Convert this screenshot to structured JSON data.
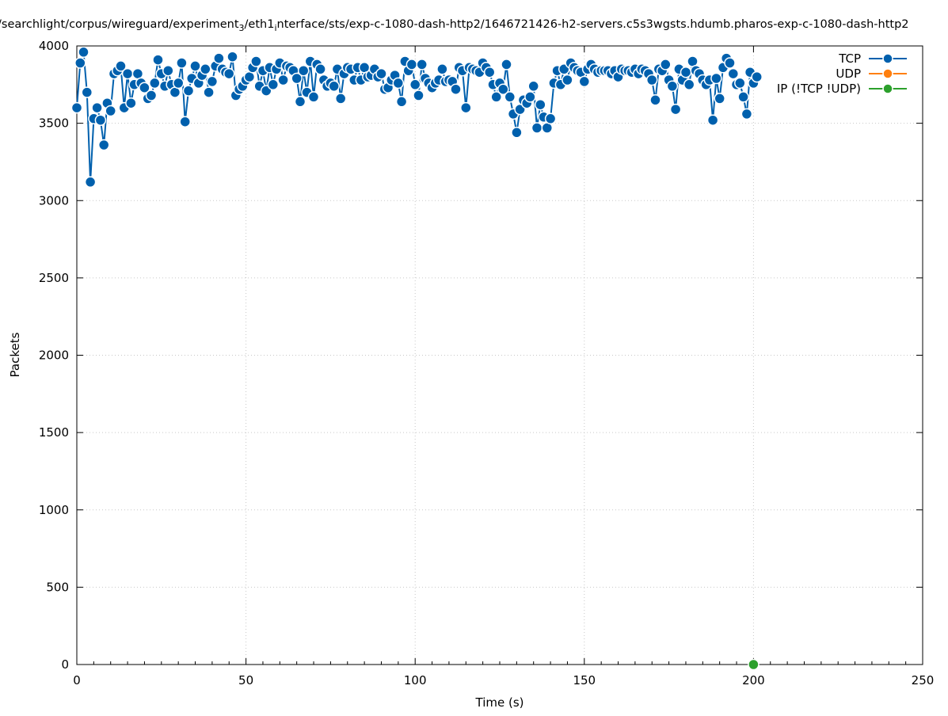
{
  "chart_data": {
    "type": "line",
    "title_prefix": "/searchlight/corpus/wireguard/experiment",
    "title_sub1": "3",
    "title_mid": "/eth1",
    "title_sub2": "i",
    "title_suffix": "nterface/sts/exp-c-1080-dash-http2/1646721426-h2-servers.c5s3wgsts.hdumb.pharos-exp-c-1080-dash-http2",
    "xlabel": "Time (s)",
    "ylabel": "Packets",
    "xlim": [
      0,
      250
    ],
    "ylim": [
      0,
      4000
    ],
    "x_ticks": [
      0,
      50,
      100,
      150,
      200,
      250
    ],
    "y_ticks": [
      0,
      500,
      1000,
      1500,
      2000,
      2500,
      3000,
      3500,
      4000
    ],
    "grid": true,
    "legend_position": "top-right",
    "series": [
      {
        "name": "TCP",
        "color": "#0060ad",
        "x": [
          0,
          1,
          2,
          3,
          4,
          5,
          6,
          7,
          8,
          9,
          10,
          11,
          12,
          13,
          14,
          15,
          16,
          17,
          18,
          19,
          20,
          21,
          22,
          23,
          24,
          25,
          26,
          27,
          28,
          29,
          30,
          31,
          32,
          33,
          34,
          35,
          36,
          37,
          38,
          39,
          40,
          41,
          42,
          43,
          44,
          45,
          46,
          47,
          48,
          49,
          50,
          51,
          52,
          53,
          54,
          55,
          56,
          57,
          58,
          59,
          60,
          61,
          62,
          63,
          64,
          65,
          66,
          67,
          68,
          69,
          70,
          71,
          72,
          73,
          74,
          75,
          76,
          77,
          78,
          79,
          80,
          81,
          82,
          83,
          84,
          85,
          86,
          87,
          88,
          89,
          90,
          91,
          92,
          93,
          94,
          95,
          96,
          97,
          98,
          99,
          100,
          101,
          102,
          103,
          104,
          105,
          106,
          107,
          108,
          109,
          110,
          111,
          112,
          113,
          114,
          115,
          116,
          117,
          118,
          119,
          120,
          121,
          122,
          123,
          124,
          125,
          126,
          127,
          128,
          129,
          130,
          131,
          132,
          133,
          134,
          135,
          136,
          137,
          138,
          139,
          140,
          141,
          142,
          143,
          144,
          145,
          146,
          147,
          148,
          149,
          150,
          151,
          152,
          153,
          154,
          155,
          156,
          157,
          158,
          159,
          160,
          161,
          162,
          163,
          164,
          165,
          166,
          167,
          168,
          169,
          170,
          171,
          172,
          173,
          174,
          175,
          176,
          177,
          178,
          179,
          180,
          181,
          182,
          183,
          184,
          185,
          186,
          187,
          188,
          189,
          190,
          191,
          192,
          193,
          194,
          195,
          196,
          197,
          198,
          199,
          200,
          201
        ],
        "y": [
          3600,
          3890,
          3960,
          3700,
          3120,
          3530,
          3600,
          3520,
          3360,
          3630,
          3580,
          3820,
          3840,
          3870,
          3600,
          3820,
          3630,
          3750,
          3820,
          3760,
          3730,
          3660,
          3680,
          3760,
          3910,
          3820,
          3740,
          3840,
          3750,
          3700,
          3760,
          3890,
          3510,
          3710,
          3790,
          3870,
          3760,
          3810,
          3850,
          3700,
          3770,
          3870,
          3920,
          3850,
          3830,
          3820,
          3930,
          3680,
          3720,
          3740,
          3780,
          3800,
          3860,
          3900,
          3740,
          3840,
          3710,
          3860,
          3750,
          3850,
          3890,
          3780,
          3870,
          3860,
          3840,
          3790,
          3640,
          3840,
          3700,
          3900,
          3670,
          3880,
          3850,
          3780,
          3740,
          3760,
          3740,
          3850,
          3660,
          3820,
          3860,
          3850,
          3780,
          3860,
          3780,
          3860,
          3800,
          3810,
          3850,
          3800,
          3820,
          3720,
          3730,
          3780,
          3810,
          3760,
          3640,
          3900,
          3840,
          3880,
          3750,
          3680,
          3880,
          3790,
          3760,
          3730,
          3760,
          3780,
          3850,
          3770,
          3780,
          3770,
          3720,
          3860,
          3840,
          3600,
          3860,
          3850,
          3840,
          3830,
          3890,
          3860,
          3830,
          3750,
          3670,
          3760,
          3720,
          3880,
          3670,
          3560,
          3440,
          3590,
          3650,
          3630,
          3670,
          3740,
          3470,
          3620,
          3540,
          3470,
          3530,
          3760,
          3840,
          3750,
          3850,
          3780,
          3890,
          3860,
          3840,
          3830,
          3770,
          3850,
          3880,
          3850,
          3830,
          3840,
          3840,
          3840,
          3820,
          3840,
          3800,
          3850,
          3840,
          3840,
          3830,
          3850,
          3820,
          3850,
          3840,
          3820,
          3780,
          3650,
          3850,
          3840,
          3880,
          3780,
          3740,
          3590,
          3850,
          3780,
          3830,
          3750,
          3900,
          3840,
          3820,
          3780,
          3750,
          3780,
          3520,
          3790,
          3660,
          3860,
          3920,
          3890,
          3820,
          3750,
          3760,
          3670,
          3560,
          3830,
          3760,
          3800
        ]
      },
      {
        "name": "UDP",
        "color": "#ff7f0e",
        "x": [],
        "y": []
      },
      {
        "name": "IP (!TCP  !UDP)",
        "color": "#2ca02c",
        "x": [
          200
        ],
        "y": [
          0
        ]
      }
    ]
  }
}
